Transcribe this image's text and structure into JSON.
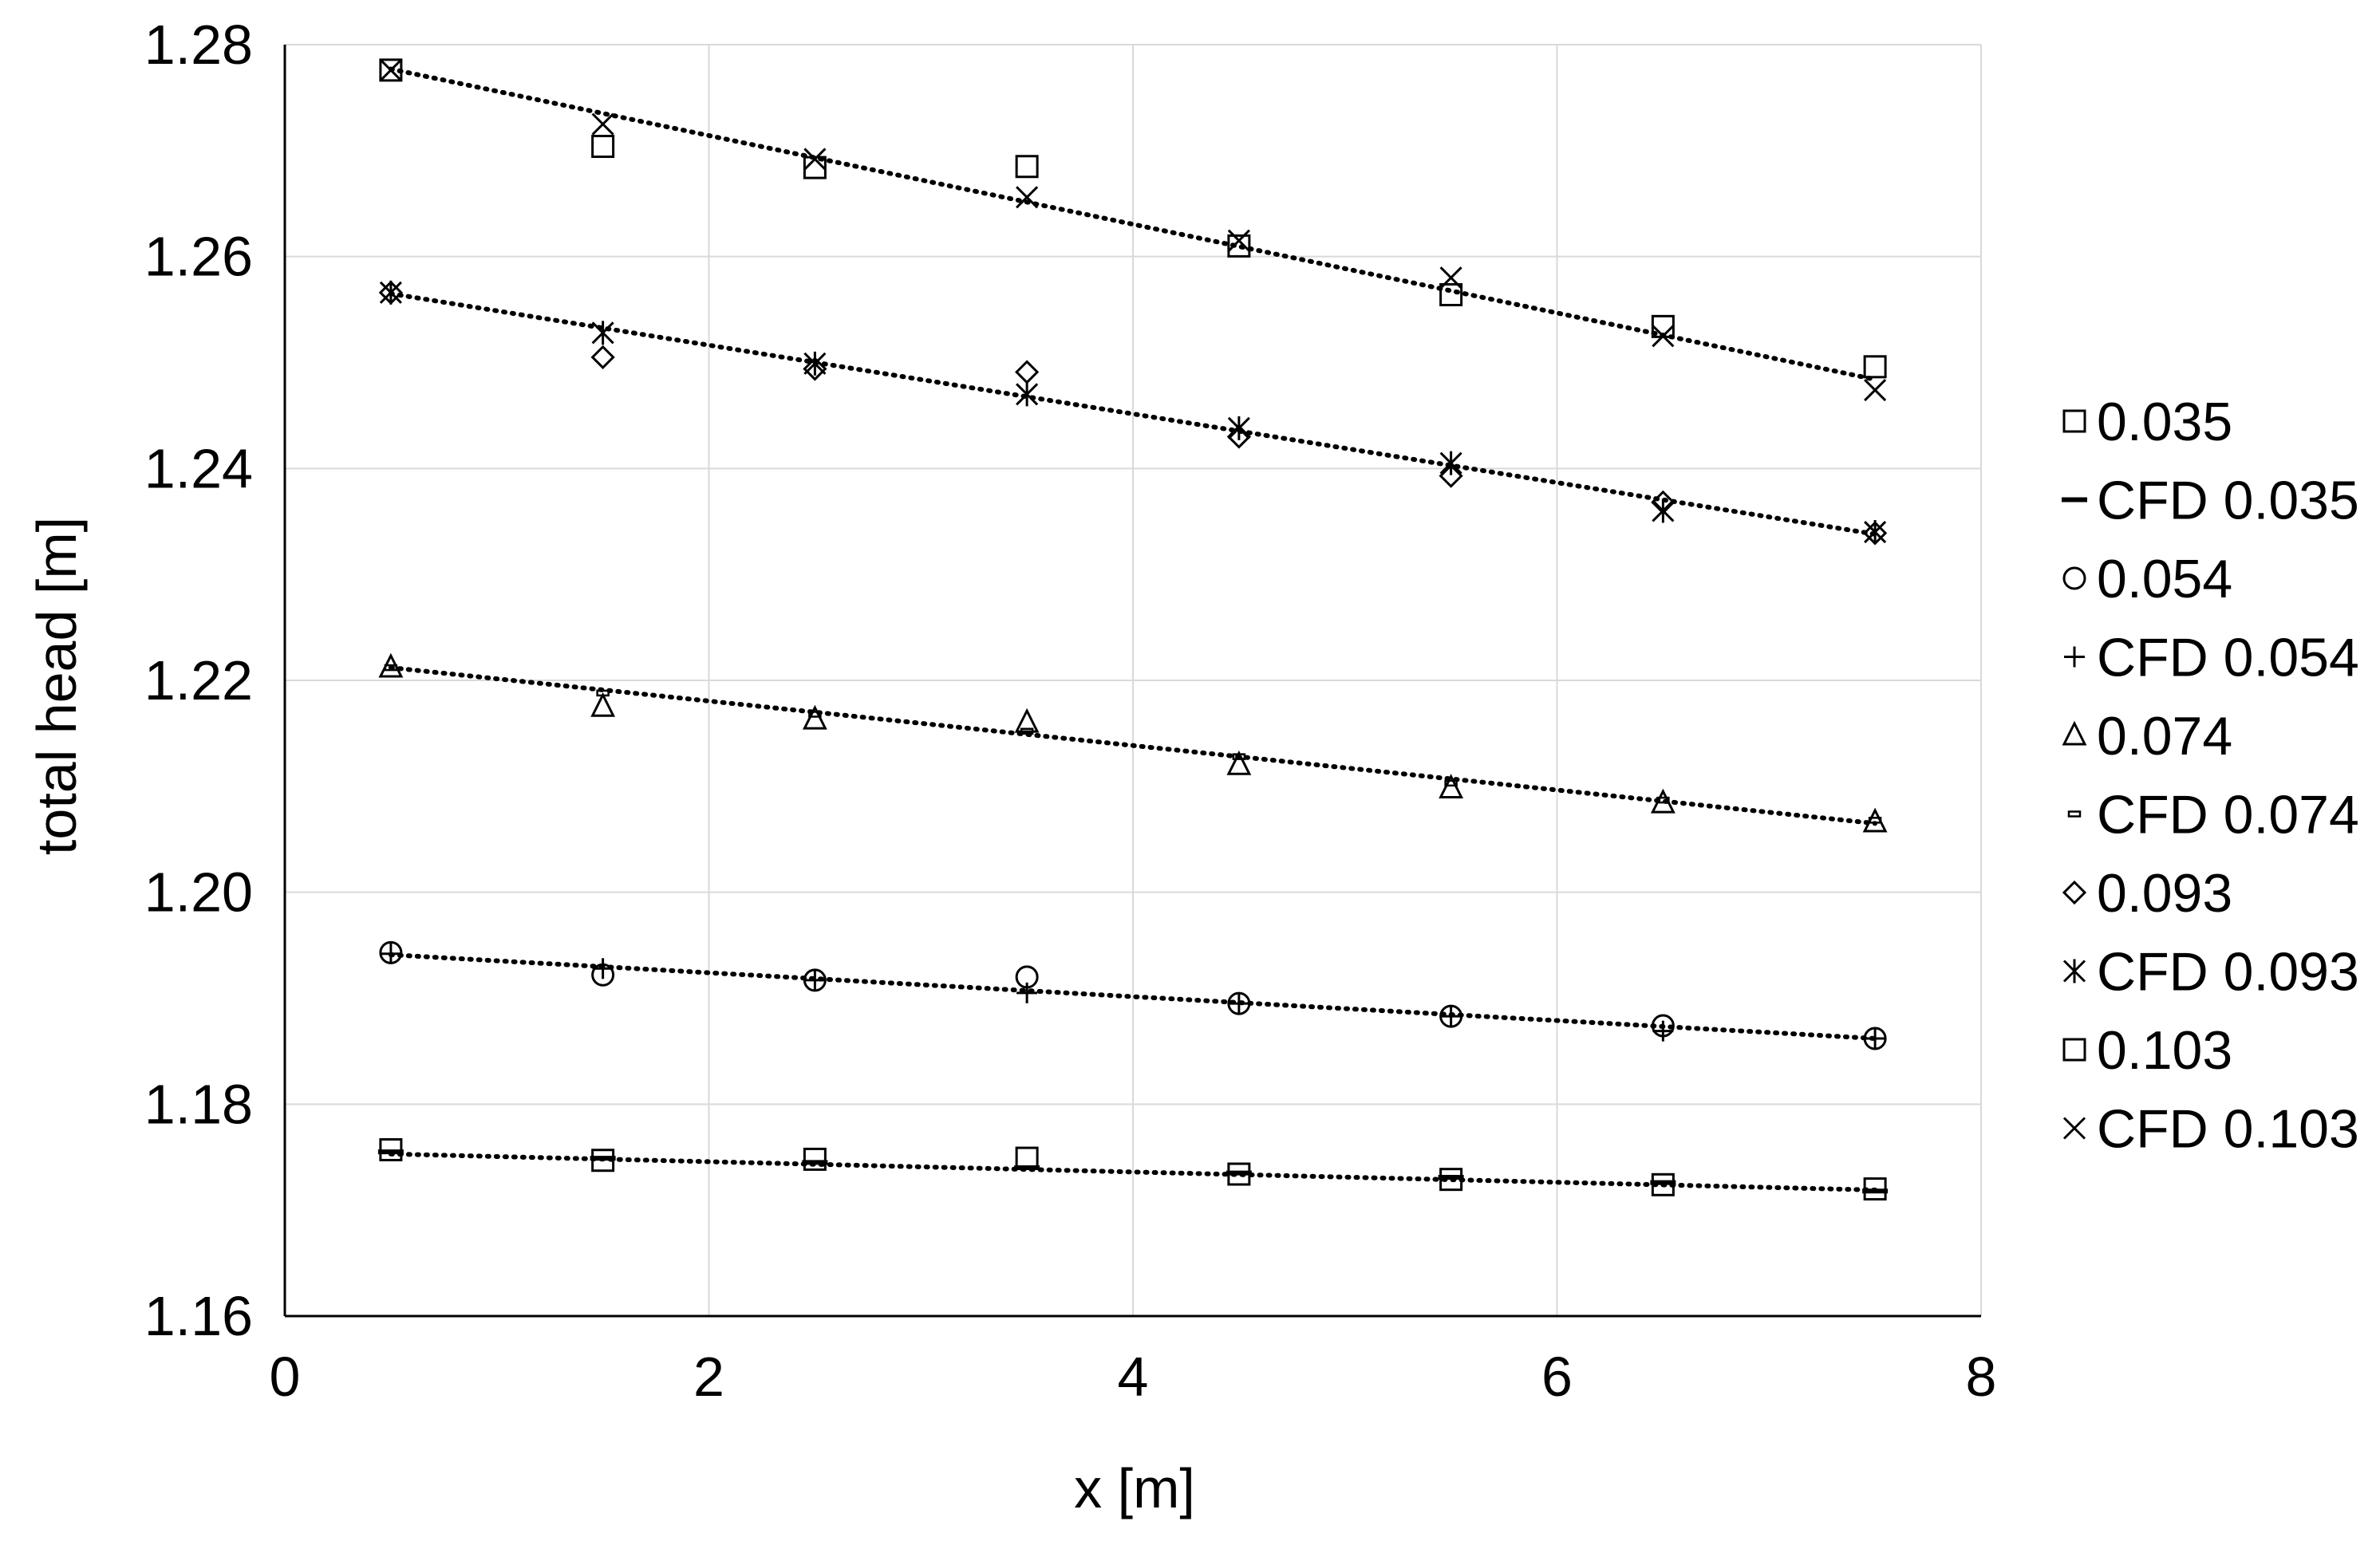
{
  "chart_data": {
    "type": "scatter",
    "title": "",
    "xlabel": "x [m]",
    "ylabel": "total head [m]",
    "xlim": [
      0,
      8
    ],
    "ylim": [
      1.16,
      1.28
    ],
    "x_ticks": [
      "0",
      "2",
      "4",
      "6",
      "8"
    ],
    "y_ticks": [
      "1.16",
      "1.18",
      "1.20",
      "1.22",
      "1.24",
      "1.26",
      "1.28"
    ],
    "x_tick_values": [
      0,
      2,
      4,
      6,
      8
    ],
    "y_tick_values": [
      1.16,
      1.18,
      1.2,
      1.22,
      1.24,
      1.26,
      1.28
    ],
    "grid": true,
    "legend_position": "right",
    "trendlines": "dotted linear fit per measured series",
    "x": [
      0.5,
      1.5,
      2.5,
      3.5,
      4.5,
      5.5,
      6.5,
      7.5
    ],
    "series": [
      {
        "name": "0.035",
        "marker": "square",
        "values": [
          1.1757,
          1.1747,
          1.1748,
          1.1749,
          1.1734,
          1.1729,
          1.1724,
          1.172
        ],
        "trend": [
          1.1753,
          1.1719
        ]
      },
      {
        "name": "CFD 0.035",
        "marker": "dash",
        "values": [
          1.1755,
          1.1749,
          1.1745,
          1.174,
          1.1735,
          1.1731,
          1.1726,
          1.1718
        ]
      },
      {
        "name": "0.054",
        "marker": "circle",
        "values": [
          1.1943,
          1.1922,
          1.1917,
          1.192,
          1.1895,
          1.1883,
          1.1874,
          1.1862
        ],
        "trend": [
          1.1941,
          1.1862
        ]
      },
      {
        "name": "CFD 0.054",
        "marker": "plus",
        "values": [
          1.1942,
          1.1928,
          1.1917,
          1.1905,
          1.1895,
          1.1883,
          1.1869,
          1.1862
        ]
      },
      {
        "name": "0.074",
        "marker": "triangle",
        "values": [
          1.2212,
          1.2175,
          1.2163,
          1.216,
          1.212,
          1.2098,
          1.2084,
          1.2066
        ],
        "trend": [
          1.2212,
          1.2065
        ]
      },
      {
        "name": "CFD 0.074",
        "marker": "small-dash",
        "values": [
          1.2212,
          1.2188,
          1.2168,
          1.2152,
          1.2128,
          1.2103,
          1.2087,
          1.2068
        ]
      },
      {
        "name": "0.093",
        "marker": "diamond",
        "values": [
          1.2566,
          1.2505,
          1.2494,
          1.2491,
          1.243,
          1.2393,
          1.2368,
          1.2339
        ],
        "trend": [
          1.2565,
          1.2338
        ]
      },
      {
        "name": "CFD 0.093",
        "marker": "asterisk",
        "values": [
          1.2566,
          1.2528,
          1.2499,
          1.247,
          1.2438,
          1.2405,
          1.236,
          1.234
        ]
      },
      {
        "name": "0.103",
        "marker": "square",
        "values": [
          1.2776,
          1.2704,
          1.2684,
          1.2685,
          1.261,
          1.2564,
          1.2534,
          1.2496
        ],
        "trend": [
          1.2777,
          1.2484
        ]
      },
      {
        "name": "CFD 0.103",
        "marker": "x",
        "values": [
          1.2776,
          1.2725,
          1.2692,
          1.2656,
          1.2615,
          1.258,
          1.2525,
          1.2474
        ]
      }
    ]
  }
}
